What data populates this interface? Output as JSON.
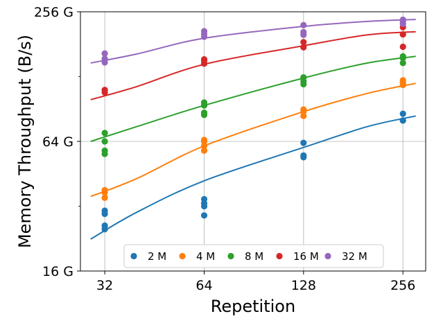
{
  "chart_data": {
    "type": "scatter",
    "title": "",
    "xlabel": "Repetition",
    "ylabel": "Memory Throughput (B/s)",
    "x_scale": "log2",
    "y_scale": "log2",
    "xlim": [
      27,
      300
    ],
    "ylim": [
      16,
      256
    ],
    "x_ticks": [
      {
        "value": 32,
        "label": "32"
      },
      {
        "value": 64,
        "label": "64"
      },
      {
        "value": 128,
        "label": "128"
      },
      {
        "value": 256,
        "label": "256"
      }
    ],
    "y_ticks": [
      {
        "value": 16,
        "label": "16 G"
      },
      {
        "value": 64,
        "label": "64 G"
      },
      {
        "value": 256,
        "label": "256 G"
      }
    ],
    "y_minor_ticks": [
      32,
      128
    ],
    "grid": true,
    "legend_position": "bottom-center",
    "legend_columns": 5,
    "series": [
      {
        "name": "2 M",
        "color": "#1f77b4",
        "points": [
          [
            32,
            30.5
          ],
          [
            32,
            29.5
          ],
          [
            32,
            26
          ],
          [
            32,
            25
          ],
          [
            64,
            34.5
          ],
          [
            64,
            33
          ],
          [
            64,
            32
          ],
          [
            64,
            29
          ],
          [
            128,
            63
          ],
          [
            128,
            55
          ],
          [
            128,
            54
          ],
          [
            256,
            86
          ],
          [
            256,
            80
          ],
          [
            256,
            80
          ]
        ],
        "fit": [
          [
            29,
            22.5
          ],
          [
            40,
            30
          ],
          [
            64,
            42
          ],
          [
            128,
            60
          ],
          [
            200,
            75
          ],
          [
            280,
            84
          ]
        ]
      },
      {
        "name": "4 M",
        "color": "#ff7f0e",
        "points": [
          [
            32,
            38
          ],
          [
            32,
            37
          ],
          [
            32,
            35
          ],
          [
            64,
            65
          ],
          [
            64,
            64
          ],
          [
            64,
            61
          ],
          [
            64,
            58
          ],
          [
            128,
            90
          ],
          [
            128,
            88
          ],
          [
            128,
            84
          ],
          [
            256,
            123
          ],
          [
            256,
            120
          ],
          [
            256,
            117
          ]
        ],
        "fit": [
          [
            29,
            35.5
          ],
          [
            40,
            43
          ],
          [
            64,
            61
          ],
          [
            128,
            88
          ],
          [
            200,
            107
          ],
          [
            280,
            119
          ]
        ]
      },
      {
        "name": "8 M",
        "color": "#2ca02c",
        "points": [
          [
            32,
            70
          ],
          [
            32,
            64
          ],
          [
            32,
            58
          ],
          [
            32,
            56
          ],
          [
            64,
            97
          ],
          [
            64,
            94
          ],
          [
            64,
            87
          ],
          [
            64,
            85
          ],
          [
            128,
            127
          ],
          [
            128,
            122
          ],
          [
            128,
            118
          ],
          [
            256,
            159
          ],
          [
            256,
            156
          ],
          [
            256,
            148
          ]
        ],
        "fit": [
          [
            29,
            64
          ],
          [
            40,
            75
          ],
          [
            64,
            94
          ],
          [
            128,
            126
          ],
          [
            200,
            148
          ],
          [
            280,
            159
          ]
        ]
      },
      {
        "name": "16 M",
        "color": "#d62728",
        "points": [
          [
            32,
            111
          ],
          [
            32,
            108
          ],
          [
            64,
            154
          ],
          [
            64,
            152
          ],
          [
            64,
            147
          ],
          [
            128,
            185
          ],
          [
            128,
            175
          ],
          [
            256,
            217
          ],
          [
            256,
            201
          ],
          [
            256,
            176
          ]
        ],
        "fit": [
          [
            29,
            100
          ],
          [
            40,
            115
          ],
          [
            64,
            146
          ],
          [
            128,
            178
          ],
          [
            200,
            200
          ],
          [
            280,
            207
          ]
        ]
      },
      {
        "name": "32 M",
        "color": "#9467bd",
        "points": [
          [
            32,
            164
          ],
          [
            32,
            155
          ],
          [
            32,
            149
          ],
          [
            64,
            208
          ],
          [
            64,
            202
          ],
          [
            64,
            196
          ],
          [
            128,
            222
          ],
          [
            128,
            206
          ],
          [
            128,
            200
          ],
          [
            256,
            235
          ],
          [
            256,
            230
          ],
          [
            256,
            225
          ]
        ],
        "fit": [
          [
            29,
            148
          ],
          [
            40,
            163
          ],
          [
            64,
            193
          ],
          [
            128,
            219
          ],
          [
            200,
            231
          ],
          [
            280,
            236
          ]
        ]
      }
    ]
  }
}
